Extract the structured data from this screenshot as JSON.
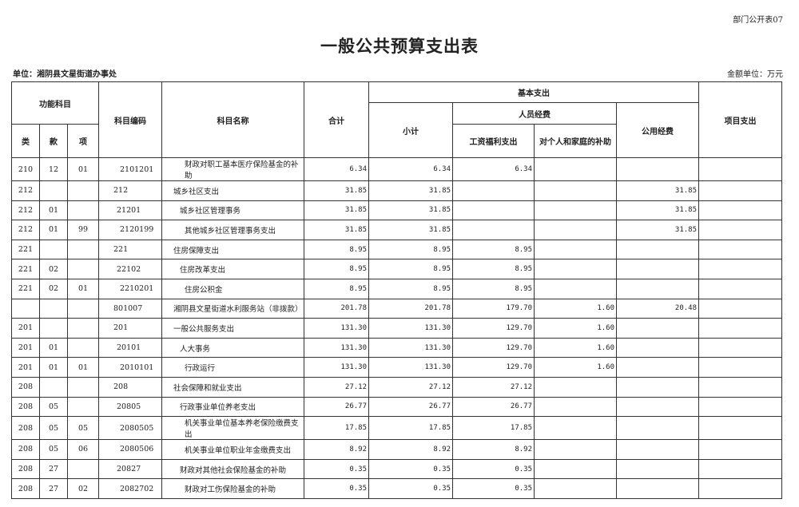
{
  "form_no": "部门公开表07",
  "title": "一般公共预算支出表",
  "unit": "单位：湘阴县文星街道办事处",
  "money_unit": "金额单位：万元",
  "headers": {
    "func": "功能科目",
    "lei": "类",
    "kuan": "款",
    "xiang": "项",
    "code": "科目编码",
    "name": "科目名称",
    "total": "合计",
    "basic": "基本支出",
    "subtotal": "小计",
    "personnel": "人员经费",
    "wage": "工资福利支出",
    "indiv": "对个人和家庭的补助",
    "public": "公用经费",
    "project": "项目支出"
  },
  "rows": [
    [
      "210",
      "12",
      "01",
      "2101201",
      "财政对职工基本医疗保险基金的补助",
      "6.34",
      "6.34",
      "6.34",
      "",
      "",
      ""
    ],
    [
      "212",
      "",
      "",
      "212",
      "城乡社区支出",
      "31.85",
      "31.85",
      "",
      "",
      "31.85",
      ""
    ],
    [
      "212",
      "01",
      "",
      "21201",
      "城乡社区管理事务",
      "31.85",
      "31.85",
      "",
      "",
      "31.85",
      ""
    ],
    [
      "212",
      "01",
      "99",
      "2120199",
      "其他城乡社区管理事务支出",
      "31.85",
      "31.85",
      "",
      "",
      "31.85",
      ""
    ],
    [
      "221",
      "",
      "",
      "221",
      "住房保障支出",
      "8.95",
      "8.95",
      "8.95",
      "",
      "",
      ""
    ],
    [
      "221",
      "02",
      "",
      "22102",
      "住房改革支出",
      "8.95",
      "8.95",
      "8.95",
      "",
      "",
      ""
    ],
    [
      "221",
      "02",
      "01",
      "2210201",
      "住房公积金",
      "8.95",
      "8.95",
      "8.95",
      "",
      "",
      ""
    ],
    [
      "",
      "",
      "",
      "801007",
      "湘阴县文星街道水利服务站（非拨款）",
      "201.78",
      "201.78",
      "179.70",
      "1.60",
      "20.48",
      ""
    ],
    [
      "201",
      "",
      "",
      "201",
      "一般公共服务支出",
      "131.30",
      "131.30",
      "129.70",
      "1.60",
      "",
      ""
    ],
    [
      "201",
      "01",
      "",
      "20101",
      "人大事务",
      "131.30",
      "131.30",
      "129.70",
      "1.60",
      "",
      ""
    ],
    [
      "201",
      "01",
      "01",
      "2010101",
      "行政运行",
      "131.30",
      "131.30",
      "129.70",
      "1.60",
      "",
      ""
    ],
    [
      "208",
      "",
      "",
      "208",
      "社会保障和就业支出",
      "27.12",
      "27.12",
      "27.12",
      "",
      "",
      ""
    ],
    [
      "208",
      "05",
      "",
      "20805",
      "行政事业单位养老支出",
      "26.77",
      "26.77",
      "26.77",
      "",
      "",
      ""
    ],
    [
      "208",
      "05",
      "05",
      "2080505",
      "机关事业单位基本养老保险缴费支出",
      "17.85",
      "17.85",
      "17.85",
      "",
      "",
      ""
    ],
    [
      "208",
      "05",
      "06",
      "2080506",
      "机关事业单位职业年金缴费支出",
      "8.92",
      "8.92",
      "8.92",
      "",
      "",
      ""
    ],
    [
      "208",
      "27",
      "",
      "20827",
      "财政对其他社会保险基金的补助",
      "0.35",
      "0.35",
      "0.35",
      "",
      "",
      ""
    ],
    [
      "208",
      "27",
      "02",
      "2082702",
      "财政对工伤保险基金的补助",
      "0.35",
      "0.35",
      "0.35",
      "",
      "",
      ""
    ]
  ]
}
